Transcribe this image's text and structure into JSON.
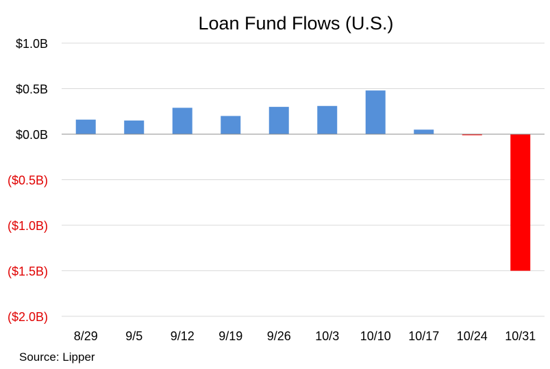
{
  "chart_data": {
    "type": "bar",
    "title": "Loan Fund Flows (U.S.)",
    "source": "Source: Lipper",
    "categories": [
      "8/29",
      "9/5",
      "9/12",
      "9/19",
      "9/26",
      "10/3",
      "10/10",
      "10/17",
      "10/24",
      "10/31"
    ],
    "values": [
      0.16,
      0.15,
      0.29,
      0.2,
      0.3,
      0.31,
      0.48,
      0.05,
      -0.01,
      -1.5
    ],
    "yticks": [
      {
        "value": 1.0,
        "label": "$1.0B"
      },
      {
        "value": 0.5,
        "label": "$0.5B"
      },
      {
        "value": 0.0,
        "label": "$0.0B"
      },
      {
        "value": -0.5,
        "label": "($0.5B)"
      },
      {
        "value": -1.0,
        "label": "($1.0B)"
      },
      {
        "value": -1.5,
        "label": "($1.5B)"
      },
      {
        "value": -2.0,
        "label": "($2.0B)"
      }
    ],
    "ylim": [
      -2.0,
      1.0
    ],
    "grid": true,
    "colors": {
      "positive": "#5590d9",
      "negative": "#ff0000",
      "negative_label": "#e00000",
      "grid": "#d9d9d9",
      "axis": "#8c8c8c"
    }
  }
}
